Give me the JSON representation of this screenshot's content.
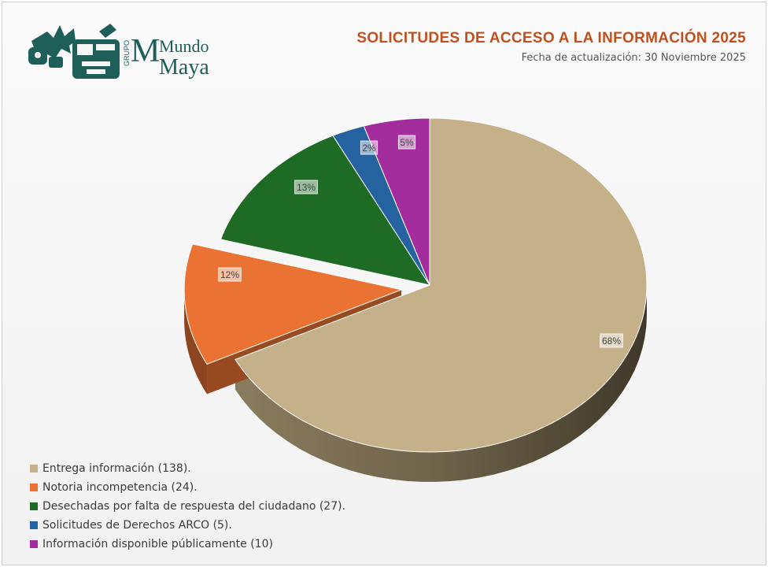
{
  "header": {
    "title": "SOLICITUDES DE ACCESO A LA INFORMACIÓN 2025",
    "subtitle": "Fecha de actualización: 30 Noviembre 2025"
  },
  "logo": {
    "group": "GRUPO",
    "brand_top": "Mundo",
    "brand_bottom": "Maya",
    "color": "#1f5f5a"
  },
  "chart_data": {
    "type": "pie",
    "categories": [
      "Entrega información (138).",
      "Notoria incompetencia (24).",
      "Desechadas por falta de respuesta del ciudadano (27).",
      "Solicitudes de Derechos ARCO (5).",
      "Información disponible públicamente (10)"
    ],
    "values": [
      138,
      24,
      27,
      5,
      10
    ],
    "data_labels": [
      "68%",
      "12%",
      "13%",
      "2%",
      "5%"
    ],
    "colors": [
      "#c4b089",
      "#ea7333",
      "#1e6b26",
      "#2462a0",
      "#a42d9e"
    ],
    "legend_position": "bottom-left",
    "exploded": true,
    "three_d": true
  }
}
